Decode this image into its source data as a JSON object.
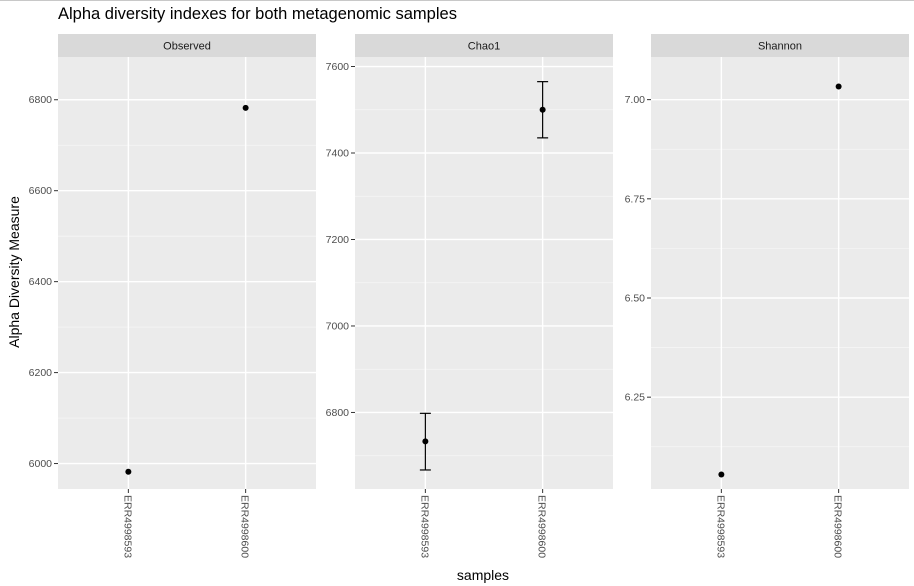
{
  "chart_data": {
    "type": "scatter",
    "title": "Alpha diversity indexes for both metagenomic samples",
    "xlabel": "samples",
    "ylabel": "Alpha Diversity Measure",
    "categories": [
      "ERR4998593",
      "ERR4998600"
    ],
    "grid": true,
    "panels": [
      {
        "name": "Observed",
        "ylim": [
          5944,
          6894
        ],
        "yticks": [
          6000,
          6200,
          6400,
          6600,
          6800
        ],
        "ytick_labels": [
          "6000",
          "6200",
          "6400",
          "6600",
          "6800"
        ],
        "points": [
          {
            "x": "ERR4998593",
            "y": 5982
          },
          {
            "x": "ERR4998600",
            "y": 6782
          }
        ]
      },
      {
        "name": "Chao1",
        "ylim": [
          6623,
          7622
        ],
        "yticks": [
          6800,
          7000,
          7200,
          7400,
          7600
        ],
        "ytick_labels": [
          "6800",
          "7000",
          "7200",
          "7400",
          "7600"
        ],
        "points": [
          {
            "x": "ERR4998593",
            "y": 6733,
            "ymin": 6667,
            "ymax": 6798
          },
          {
            "x": "ERR4998600",
            "y": 7500,
            "ymin": 7435,
            "ymax": 7565
          }
        ]
      },
      {
        "name": "Shannon",
        "ylim": [
          6.0185,
          7.1075
        ],
        "yticks": [
          6.25,
          6.5,
          6.75,
          7.0
        ],
        "ytick_labels": [
          "6.25",
          "6.50",
          "6.75",
          "7.00"
        ],
        "points": [
          {
            "x": "ERR4998593",
            "y": 6.055
          },
          {
            "x": "ERR4998600",
            "y": 7.033
          }
        ]
      }
    ]
  }
}
